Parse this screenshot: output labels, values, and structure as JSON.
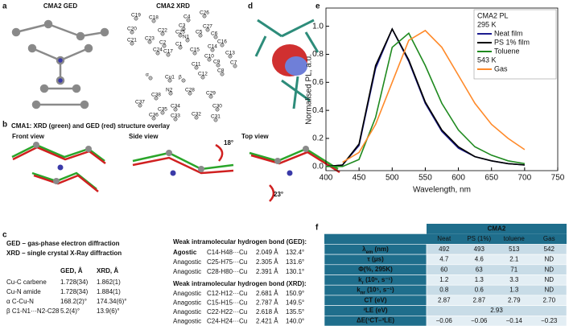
{
  "panel_labels": [
    "a",
    "b",
    "c",
    "d",
    "e",
    "f"
  ],
  "panel_a": {
    "ged_title": "CMA2 GED",
    "xrd_title": "CMA2 XRD",
    "atom_labels": [
      "C19",
      "C18",
      "C20",
      "C21",
      "C23",
      "C22",
      "C24",
      "C2",
      "C17",
      "C1",
      "C4",
      "C26",
      "C3",
      "C27",
      "C5",
      "N1",
      "C6",
      "C16",
      "C14",
      "C25",
      "C15",
      "C13",
      "C10",
      "C11",
      "C9",
      "C8",
      "C7",
      "C12",
      "α",
      "Cu1",
      "β",
      "N2",
      "C28",
      "C29",
      "C37",
      "C38",
      "C30",
      "C34",
      "C35",
      "C36",
      "C33",
      "C32",
      "C31"
    ]
  },
  "panel_b": {
    "title": "CMA1: XRD (green) and GED (red) structure overlay",
    "views": [
      "Front view",
      "Side view",
      "Top view"
    ],
    "angles": [
      "18°",
      "23°"
    ]
  },
  "panel_c": {
    "legend": [
      {
        "text": "GED – gas-phase electron diffraction",
        "color": "#e8231c"
      },
      {
        "text": "XRD – single crystal X-Ray diffraction",
        "color": "#2aa52a"
      }
    ],
    "columns": [
      "GED, Å",
      "XRD, Å"
    ],
    "rows": [
      [
        "Cu-C carbene",
        "1.728(34)",
        "1.862(1)"
      ],
      [
        "Cu-N amide",
        "1.728(34)",
        "1.884(1)"
      ],
      [
        "α C-Cu-N",
        "168.2(2)°",
        "174.34(6)°"
      ],
      [
        "β C1-N1···N2-C28",
        "5.2(4)°",
        "13.9(6)°"
      ]
    ],
    "ged_title": "Weak intramolecular hydrogen bond (GED):",
    "ged_rows": [
      [
        "Agostic",
        "C14-H48···Cu",
        "2.049 Å",
        "132.4°"
      ],
      [
        "Anagostic",
        "C25-H75···Cu",
        "2.305 Å",
        "131.6°"
      ],
      [
        "Anagostic",
        "C28-H80···Cu",
        "2.391 Å",
        "130.1°"
      ]
    ],
    "xrd_title": "Weak intramolecular hydrogen bond (XRD):",
    "xrd_rows": [
      [
        "Anagostic",
        "C12-H12···Cu",
        "2.681 Å",
        "150.9°"
      ],
      [
        "Anagostic",
        "C15-H15···Cu",
        "2.787 Å",
        "149.5°"
      ],
      [
        "Anagostic",
        "C22-H22···Cu",
        "2.618 Å",
        "135.5°"
      ],
      [
        "Anagostic",
        "C24-H24···Cu",
        "2.421 Å",
        "140.0°"
      ]
    ]
  },
  "chart_data": {
    "type": "line",
    "x_label": "Wavelength, nm",
    "y_label": "Normalised PL, a.u.",
    "legend_title": "CMA2 PL",
    "legend_groups": [
      "295 K",
      "543 K"
    ],
    "x": [
      400,
      425,
      450,
      475,
      500,
      525,
      550,
      575,
      600,
      625,
      650,
      675,
      700
    ],
    "series": [
      {
        "name": "Neat film",
        "color": "#1c1c8f",
        "values": [
          0,
          0.01,
          0.15,
          0.7,
          0.98,
          0.75,
          0.45,
          0.25,
          0.13,
          0.07,
          0.04,
          0.02,
          0.01
        ]
      },
      {
        "name": "PS 1% film",
        "color": "#000000",
        "values": [
          0,
          0.01,
          0.16,
          0.72,
          0.98,
          0.76,
          0.46,
          0.26,
          0.14,
          0.07,
          0.04,
          0.02,
          0.01
        ]
      },
      {
        "name": "Toluene",
        "color": "#1f8a1f",
        "values": [
          0,
          0,
          0.05,
          0.35,
          0.85,
          0.95,
          0.72,
          0.45,
          0.26,
          0.14,
          0.08,
          0.04,
          0.02
        ]
      },
      {
        "name": "Gas",
        "color": "#ff8a2a",
        "values": [
          null,
          0.03,
          0.1,
          0.3,
          0.6,
          0.9,
          0.97,
          0.85,
          0.65,
          0.45,
          0.3,
          0.2,
          0.12
        ]
      }
    ],
    "xlim": [
      400,
      750
    ],
    "xticks": [
      400,
      450,
      500,
      550,
      600,
      650,
      700,
      750
    ],
    "ylim": [
      -0.03,
      1.13
    ],
    "yticks": [
      {
        "value": 0,
        "label": "0.0"
      },
      0.2,
      0.4,
      0.6,
      0.8,
      {
        "value": 1,
        "label": "1.0"
      }
    ],
    "legend_position": "upper right"
  },
  "panel_f": {
    "title": "CMA2",
    "columns": [
      "Neat",
      "PS (1%)",
      "toluene",
      "Gas"
    ],
    "rows": [
      {
        "label": {
          "text": "λ",
          "sub": "em",
          "tail": " (nm)"
        },
        "cells": [
          "492",
          "493",
          "513",
          "542"
        ]
      },
      {
        "label": {
          "text": "τ (μs)"
        },
        "cells": [
          "4.7",
          "4.6",
          "2.1",
          "ND"
        ]
      },
      {
        "label": {
          "text": "Φ(%, 295K)"
        },
        "cells": [
          "60",
          "63",
          "71",
          "ND"
        ]
      },
      {
        "label": {
          "text": "k",
          "sub": "r",
          "tail": " (10⁵, s⁻¹)"
        },
        "cells": [
          "1.2",
          "1.3",
          "3.3",
          "ND"
        ]
      },
      {
        "label": {
          "text": "k",
          "sub": "nr",
          "tail": " (10⁵, s⁻¹)"
        },
        "cells": [
          "0.8",
          "0.6",
          "1.3",
          "ND"
        ]
      },
      {
        "label": {
          "text": "CT (eV)"
        },
        "cells": [
          "2.87",
          "2.87",
          "2.79",
          "2.70"
        ]
      },
      {
        "label": {
          "text": "³LE (eV)"
        },
        "cells": [
          "2.93"
        ]
      },
      {
        "label": {
          "text": "ΔE(¹CT–³LE)"
        },
        "cells": [
          "−0.06",
          "−0.06",
          "−0.14",
          "−0.23"
        ]
      }
    ]
  }
}
